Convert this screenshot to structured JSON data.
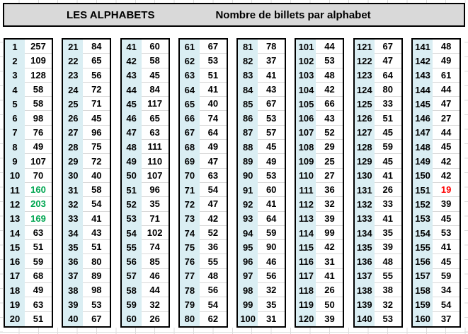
{
  "header": {
    "title_left": "LES ALPHABETS",
    "title_right": "Nombre de billets par alphabet"
  },
  "colors": {
    "header_bg": "#d9d9d9",
    "index_bg": "#daeef3",
    "default_text": "#000000",
    "green": "#00a651",
    "red": "#ff0000"
  },
  "table": {
    "columns": [
      "alphabet",
      "nombre_de_billets"
    ],
    "highlights": {
      "11": "green",
      "12": "green",
      "13": "green",
      "151": "red"
    },
    "blocks": [
      {
        "rows": [
          [
            1,
            257
          ],
          [
            2,
            109
          ],
          [
            3,
            128
          ],
          [
            4,
            58
          ],
          [
            5,
            58
          ],
          [
            6,
            98
          ],
          [
            7,
            76
          ],
          [
            8,
            49
          ],
          [
            9,
            107
          ],
          [
            10,
            70
          ],
          [
            11,
            160
          ],
          [
            12,
            203
          ],
          [
            13,
            169
          ],
          [
            14,
            63
          ],
          [
            15,
            51
          ],
          [
            16,
            59
          ],
          [
            17,
            68
          ],
          [
            18,
            49
          ],
          [
            19,
            63
          ],
          [
            20,
            51
          ]
        ]
      },
      {
        "rows": [
          [
            21,
            84
          ],
          [
            22,
            65
          ],
          [
            23,
            56
          ],
          [
            24,
            72
          ],
          [
            25,
            71
          ],
          [
            26,
            45
          ],
          [
            27,
            96
          ],
          [
            28,
            75
          ],
          [
            29,
            72
          ],
          [
            30,
            40
          ],
          [
            31,
            58
          ],
          [
            32,
            54
          ],
          [
            33,
            41
          ],
          [
            34,
            43
          ],
          [
            35,
            51
          ],
          [
            36,
            80
          ],
          [
            37,
            89
          ],
          [
            38,
            98
          ],
          [
            39,
            53
          ],
          [
            40,
            67
          ]
        ]
      },
      {
        "rows": [
          [
            41,
            60
          ],
          [
            42,
            58
          ],
          [
            43,
            45
          ],
          [
            44,
            84
          ],
          [
            45,
            117
          ],
          [
            46,
            65
          ],
          [
            47,
            63
          ],
          [
            48,
            111
          ],
          [
            49,
            110
          ],
          [
            50,
            107
          ],
          [
            51,
            96
          ],
          [
            52,
            35
          ],
          [
            53,
            71
          ],
          [
            54,
            102
          ],
          [
            55,
            74
          ],
          [
            56,
            85
          ],
          [
            57,
            46
          ],
          [
            58,
            44
          ],
          [
            59,
            32
          ],
          [
            60,
            26
          ]
        ]
      },
      {
        "rows": [
          [
            61,
            67
          ],
          [
            62,
            53
          ],
          [
            63,
            51
          ],
          [
            64,
            41
          ],
          [
            65,
            40
          ],
          [
            66,
            74
          ],
          [
            67,
            64
          ],
          [
            68,
            49
          ],
          [
            69,
            47
          ],
          [
            70,
            63
          ],
          [
            71,
            54
          ],
          [
            72,
            47
          ],
          [
            73,
            42
          ],
          [
            74,
            52
          ],
          [
            75,
            36
          ],
          [
            76,
            55
          ],
          [
            77,
            48
          ],
          [
            78,
            56
          ],
          [
            79,
            54
          ],
          [
            80,
            62
          ]
        ]
      },
      {
        "rows": [
          [
            81,
            78
          ],
          [
            82,
            37
          ],
          [
            83,
            41
          ],
          [
            84,
            43
          ],
          [
            85,
            67
          ],
          [
            86,
            53
          ],
          [
            87,
            57
          ],
          [
            88,
            45
          ],
          [
            89,
            49
          ],
          [
            90,
            53
          ],
          [
            91,
            60
          ],
          [
            92,
            41
          ],
          [
            93,
            64
          ],
          [
            94,
            59
          ],
          [
            95,
            90
          ],
          [
            96,
            46
          ],
          [
            97,
            56
          ],
          [
            98,
            32
          ],
          [
            99,
            35
          ],
          [
            100,
            31
          ]
        ]
      },
      {
        "rows": [
          [
            101,
            44
          ],
          [
            102,
            53
          ],
          [
            103,
            48
          ],
          [
            104,
            42
          ],
          [
            105,
            66
          ],
          [
            106,
            43
          ],
          [
            107,
            52
          ],
          [
            108,
            29
          ],
          [
            109,
            25
          ],
          [
            110,
            27
          ],
          [
            111,
            36
          ],
          [
            112,
            32
          ],
          [
            113,
            39
          ],
          [
            114,
            99
          ],
          [
            115,
            42
          ],
          [
            116,
            31
          ],
          [
            117,
            41
          ],
          [
            118,
            26
          ],
          [
            119,
            50
          ],
          [
            120,
            39
          ]
        ]
      },
      {
        "rows": [
          [
            121,
            67
          ],
          [
            122,
            47
          ],
          [
            123,
            64
          ],
          [
            124,
            80
          ],
          [
            125,
            33
          ],
          [
            126,
            51
          ],
          [
            127,
            45
          ],
          [
            128,
            59
          ],
          [
            129,
            45
          ],
          [
            130,
            41
          ],
          [
            131,
            26
          ],
          [
            132,
            33
          ],
          [
            133,
            41
          ],
          [
            134,
            35
          ],
          [
            135,
            39
          ],
          [
            136,
            48
          ],
          [
            137,
            55
          ],
          [
            138,
            38
          ],
          [
            139,
            32
          ],
          [
            140,
            53
          ]
        ]
      },
      {
        "rows": [
          [
            141,
            48
          ],
          [
            142,
            49
          ],
          [
            143,
            61
          ],
          [
            144,
            44
          ],
          [
            145,
            47
          ],
          [
            146,
            27
          ],
          [
            147,
            44
          ],
          [
            148,
            45
          ],
          [
            149,
            42
          ],
          [
            150,
            42
          ],
          [
            151,
            19
          ],
          [
            152,
            39
          ],
          [
            153,
            45
          ],
          [
            154,
            53
          ],
          [
            155,
            41
          ],
          [
            156,
            45
          ],
          [
            157,
            59
          ],
          [
            158,
            34
          ],
          [
            159,
            54
          ],
          [
            160,
            37
          ]
        ]
      }
    ]
  }
}
